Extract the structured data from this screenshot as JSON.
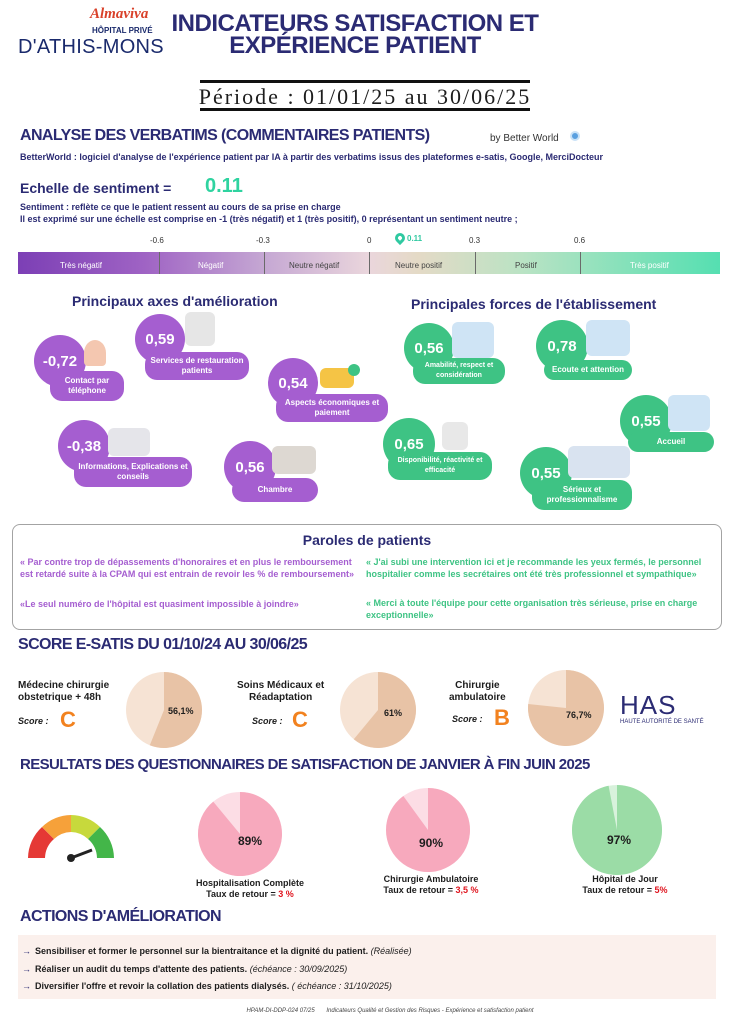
{
  "header": {
    "logo_brand": "Almaviva",
    "logo_sub": "HÔPITAL PRIVÉ",
    "logo_name": "D'ATHIS-MONS",
    "title_line1": "INDICATEURS SATISFACTION ET",
    "title_line2": "EXPÉRIENCE PATIENT",
    "period": "Période : 01/01/25 au 30/06/25"
  },
  "verbatims": {
    "title": "ANALYSE DES VERBATIMS (COMMENTAIRES PATIENTS)",
    "by": "by Better World",
    "description": "BetterWorld : logiciel d'analyse de l'expérience patient par IA à partir des verbatims issus des plateformes e-satis, Google, MerciDocteur",
    "scale_label": "Echelle de sentiment =",
    "scale_value": "0.11",
    "sentiment_def": "Sentiment : reflète ce que le patient ressent au cours de sa prise en charge",
    "scale_def": "Il est exprimé sur une échelle est comprise en -1 (très négatif) et 1 (très positif), 0 représentant un sentiment neutre ;",
    "ticks": [
      "-0.6",
      "-0.3",
      "0",
      "0.11",
      "0.3",
      "0.6"
    ],
    "segments": [
      "Très négatif",
      "Négatif",
      "Neutre négatif",
      "Neutre positif",
      "Positif",
      "Très positif"
    ],
    "colors": {
      "purple": "#a55ed0",
      "green": "#3ec384",
      "navy": "#2b2b73",
      "orange": "#f2821f"
    }
  },
  "improvement": {
    "title": "Principaux axes d'amélioration",
    "items": [
      {
        "value": "-0,72",
        "label": "Contact par téléphone"
      },
      {
        "value": "0,59",
        "label": "Services de restauration patients"
      },
      {
        "value": "0,54",
        "label": "Aspects économiques et paiement"
      },
      {
        "value": "-0,38",
        "label": "Informations, Explications et conseils"
      },
      {
        "value": "0,56",
        "label": "Chambre"
      }
    ]
  },
  "strengths": {
    "title": "Principales forces de l'établissement",
    "items": [
      {
        "value": "0,56",
        "label": "Amabilité, respect et considération"
      },
      {
        "value": "0,78",
        "label": "Ecoute et attention"
      },
      {
        "value": "0,55",
        "label": "Accueil"
      },
      {
        "value": "0,65",
        "label": "Disponibilité, réactivité et efficacité"
      },
      {
        "value": "0,55",
        "label": "Sérieux et professionnalisme"
      }
    ]
  },
  "quotes": {
    "title": "Paroles de patients",
    "negative": [
      "« Par contre trop de dépassements d'honoraires et en plus le remboursement est retardé suite à la CPAM qui est entrain de revoir les % de remboursement»",
      "«Le seul numéro de l'hôpital est quasiment impossible à joindre»"
    ],
    "positive": [
      "« J'ai subi une intervention ici et je recommande les yeux fermés, le personnel hospitalier comme les secrétaires ont été très professionnel et sympathique»",
      "« Merci à toute l'équipe pour cette organisation très sérieuse, prise en charge exceptionnelle»"
    ]
  },
  "esatis": {
    "title": "SCORE E-SATIS DU 01/10/24 AU 30/06/25",
    "score_label": "Score :",
    "items": [
      {
        "service_line1": "Médecine chirurgie",
        "service_line2": "obstetrique + 48h",
        "grade": "C",
        "percent": "56,1%",
        "value": 56.1
      },
      {
        "service_line1": "Soins Médicaux et",
        "service_line2": "Réadaptation",
        "grade": "C",
        "percent": "61%",
        "value": 61
      },
      {
        "service_line1": "Chirurgie",
        "service_line2": "ambulatoire",
        "grade": "B",
        "percent": "76,7%",
        "value": 76.7
      }
    ],
    "has_logo": "HAS",
    "has_sub": "HAUTE AUTORITÉ DE SANTÉ"
  },
  "questionnaires": {
    "title": "RESULTATS DES QUESTIONNAIRES DE SATISFACTION DE JANVIER À FIN JUIN 2025",
    "return_label": "Taux de retour =",
    "items": [
      {
        "service": "Hospitalisation Complète",
        "percent": "89%",
        "value": 89,
        "return_rate": "3 %",
        "color": "#f7a9bd",
        "light": "#fcdde5"
      },
      {
        "service": "Chirurgie Ambulatoire",
        "percent": "90%",
        "value": 90,
        "return_rate": "3,5 %",
        "color": "#f7a9bd",
        "light": "#fcdde5"
      },
      {
        "service": "Hôpital de Jour",
        "percent": "97%",
        "value": 97,
        "return_rate": "5%",
        "color": "#9bdca6",
        "light": "#d8f2dc"
      }
    ]
  },
  "actions": {
    "title": "ACTIONS D'AMÉLIORATION",
    "items": [
      {
        "text": "Sensibiliser et former le personnel sur la bientraitance et la dignité du patient.",
        "status": "(Réalisée)"
      },
      {
        "text": "Réaliser un audit du temps d'attente des patients.",
        "status": "(échéance : 30/09/2025)"
      },
      {
        "text": "Diversifier l'offre et revoir la collation des patients dialysés.",
        "status": "( échéance : 31/10/2025)"
      }
    ]
  },
  "footer": {
    "code": "HPAM-DI-DDP-024 07/25",
    "text": "Indicateurs Qualité et Gestion des Risques - Expérience et satisfaction patient"
  }
}
